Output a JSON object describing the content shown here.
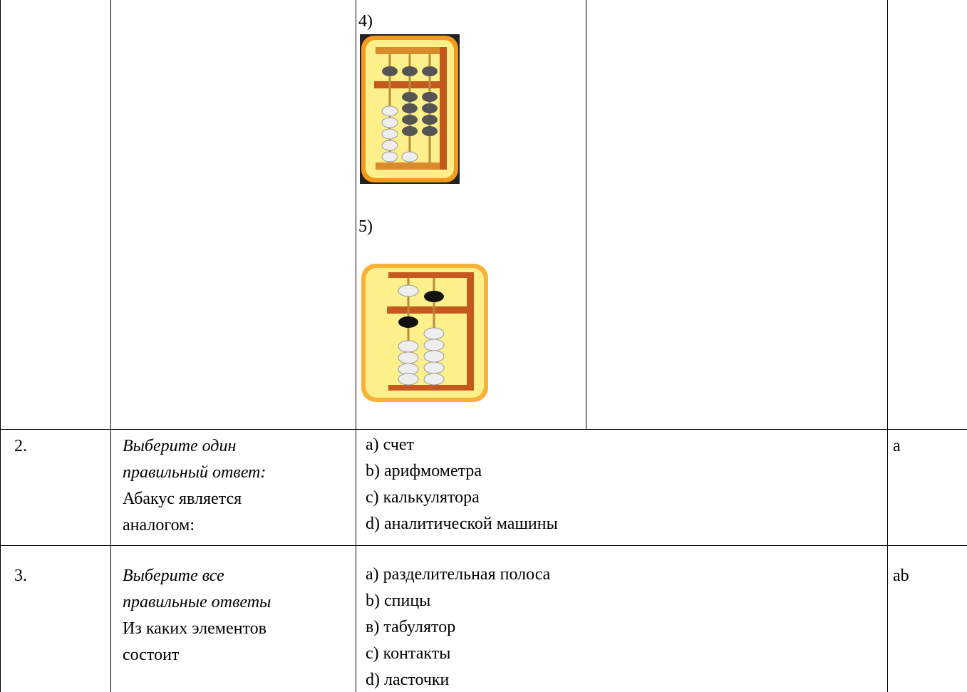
{
  "table": {
    "rows": [
      {
        "items": [
          "4)",
          "5)"
        ]
      },
      {
        "number": "2.",
        "instruction_lines": [
          "Выберите один",
          "правильный ответ:"
        ],
        "question_lines": [
          "Абакус является",
          "аналогом:"
        ],
        "options": [
          "a) счет",
          "b) арифмометра",
          "c) калькулятора",
          "d) аналитической машины"
        ],
        "answer": "a"
      },
      {
        "number": "3.",
        "instruction_lines": [
          "Выберите все",
          "правильные ответы"
        ],
        "question_lines": [
          "Из каких элементов",
          "состоит"
        ],
        "options": [
          "a) разделительная полоса",
          "b) спицы",
          "в) табулятор",
          "c) контакты",
          "d) ласточки"
        ],
        "answer": "ab"
      }
    ]
  }
}
